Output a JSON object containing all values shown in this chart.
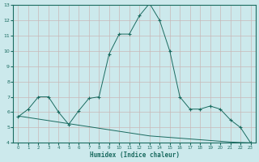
{
  "xlabel": "Humidex (Indice chaleur)",
  "bg_color": "#cce9ec",
  "line_color": "#1a6b60",
  "grid_color": "#b0d8dc",
  "xlim": [
    -0.5,
    23.5
  ],
  "ylim": [
    4,
    13
  ],
  "yticks": [
    4,
    5,
    6,
    7,
    8,
    9,
    10,
    11,
    12,
    13
  ],
  "xticks": [
    0,
    1,
    2,
    3,
    4,
    5,
    6,
    7,
    8,
    9,
    10,
    11,
    12,
    13,
    14,
    15,
    16,
    17,
    18,
    19,
    20,
    21,
    22,
    23
  ],
  "curve1_x": [
    0,
    1,
    2,
    3,
    4,
    5,
    6,
    7,
    8,
    9,
    10,
    11,
    12,
    13,
    14,
    15,
    16,
    17,
    18,
    19,
    20,
    21,
    22,
    23
  ],
  "curve1_y": [
    5.7,
    6.2,
    7.0,
    7.0,
    6.0,
    5.2,
    6.1,
    6.9,
    7.0,
    9.8,
    11.1,
    11.1,
    12.3,
    13.1,
    12.0,
    10.0,
    7.0,
    6.2,
    6.2,
    6.4,
    6.2,
    5.5,
    5.0,
    4.0
  ],
  "curve2_x": [
    0,
    1,
    2,
    3,
    4,
    5,
    6,
    7,
    8,
    9,
    10,
    11,
    12,
    13,
    14,
    15,
    16,
    17,
    18,
    19,
    20,
    21,
    22,
    23
  ],
  "curve2_y": [
    5.75,
    5.65,
    5.55,
    5.45,
    5.35,
    5.25,
    5.15,
    5.05,
    4.95,
    4.85,
    4.75,
    4.65,
    4.55,
    4.45,
    4.4,
    4.35,
    4.3,
    4.25,
    4.2,
    4.15,
    4.1,
    4.05,
    4.02,
    4.0
  ]
}
